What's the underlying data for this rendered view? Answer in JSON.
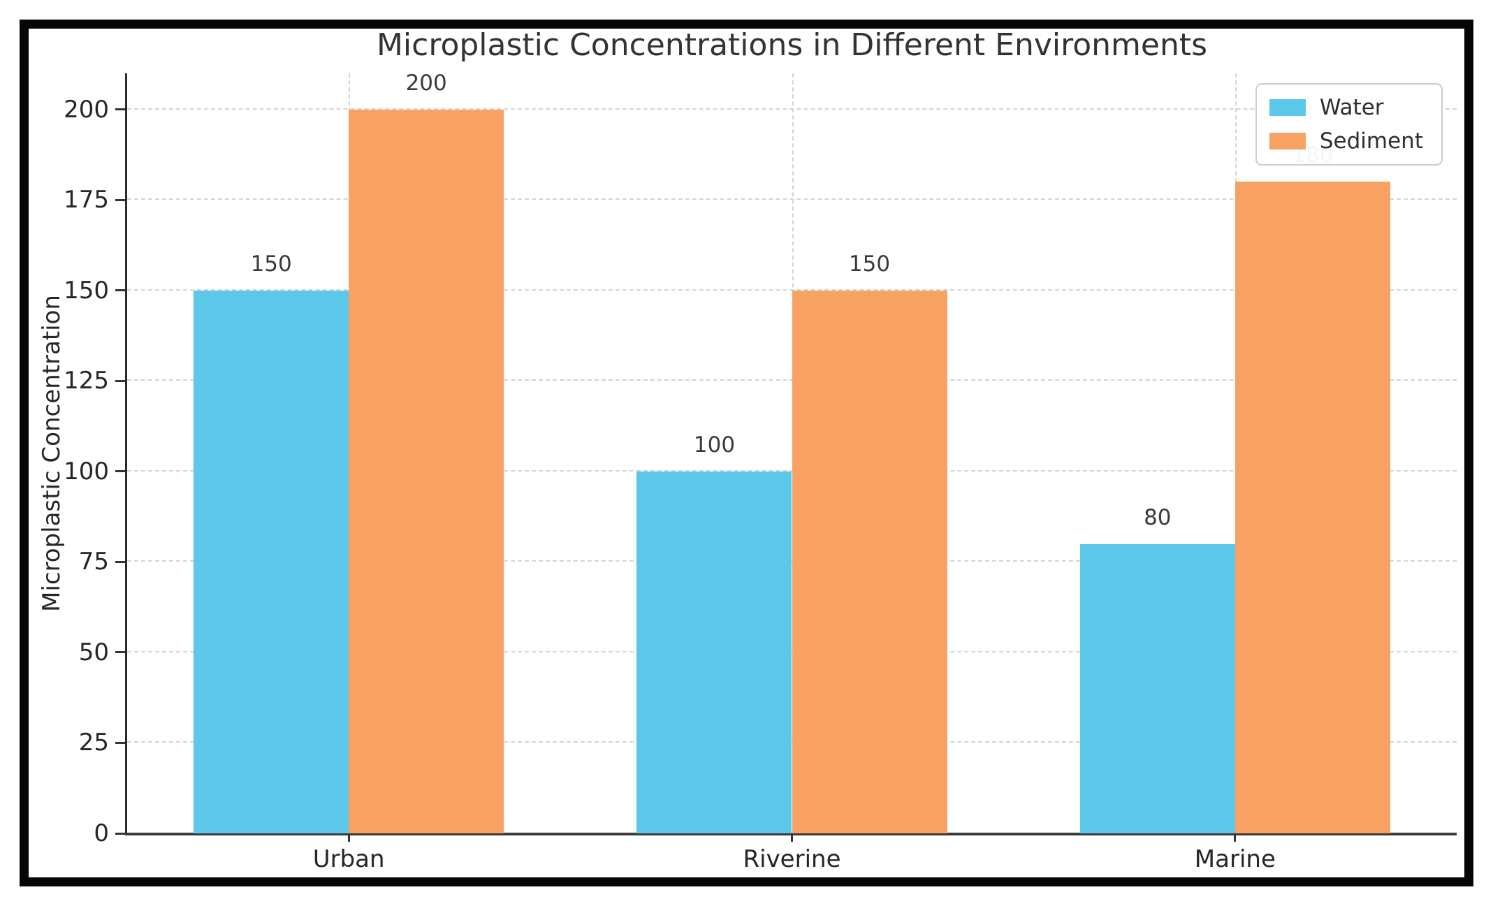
{
  "figure": {
    "background": "#ffffff",
    "border_color": "#060606"
  },
  "chart_data": {
    "type": "bar",
    "title": "Microplastic Concentrations in Different Environments",
    "xlabel": "",
    "ylabel": "Microplastic Concentration",
    "categories": [
      "Urban",
      "Riverine",
      "Marine"
    ],
    "series": [
      {
        "name": "Water",
        "color": "#5BC8EA",
        "values": [
          150,
          100,
          80
        ]
      },
      {
        "name": "Sediment",
        "color": "#F7A263",
        "values": [
          200,
          150,
          180
        ]
      }
    ],
    "ylim": [
      0,
      210
    ],
    "yticks": [
      0,
      25,
      50,
      75,
      100,
      125,
      150,
      175,
      200
    ],
    "bar_width_fraction": 0.35,
    "grid": {
      "horizontal": true,
      "vertical": true,
      "style": "dashed",
      "color": "#d4d4d4"
    },
    "legend": {
      "position": "upper right",
      "labels": [
        "Water",
        "Sediment"
      ]
    },
    "value_labels_shown": true,
    "axis_color": "#333333",
    "text_color": "#262626",
    "value_label_color": "#3a3a3a"
  }
}
